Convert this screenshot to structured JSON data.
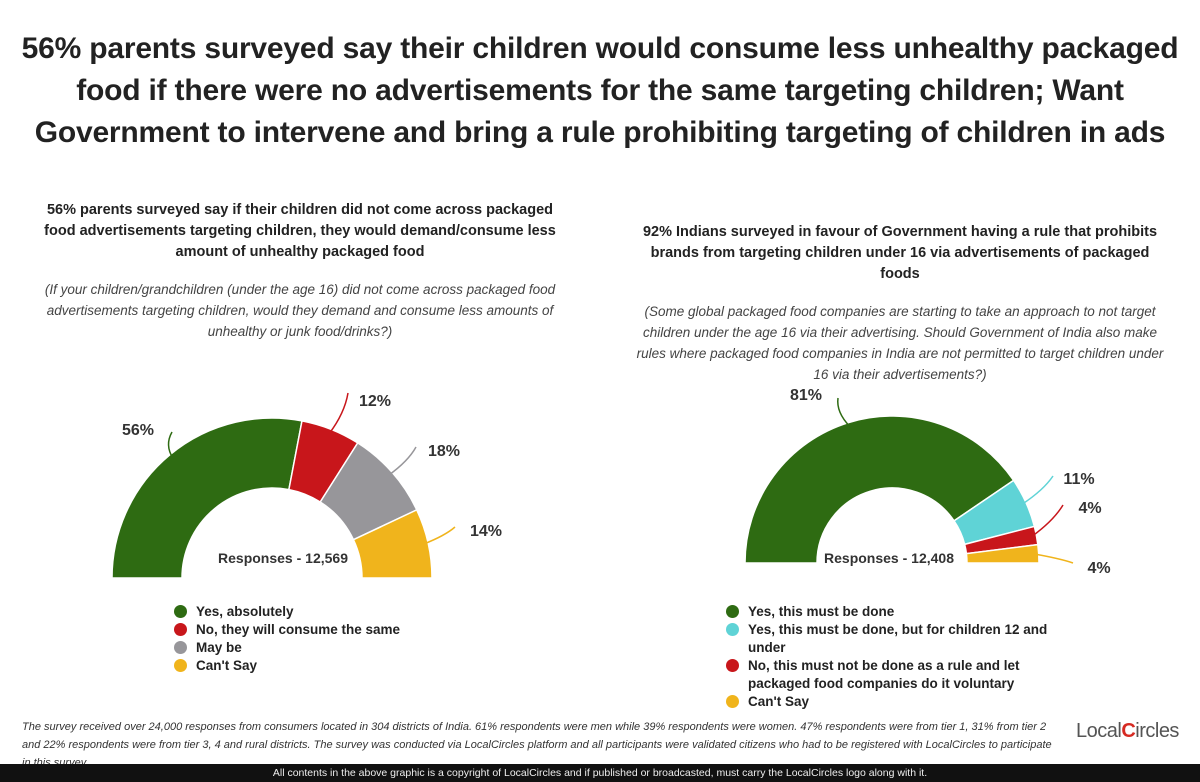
{
  "main_title": "56% parents surveyed say their children would consume less unhealthy packaged food if there were no advertisements for the same targeting children; Want Government to intervene and bring a rule prohibiting targeting of children in ads",
  "chart_data": [
    {
      "type": "pie",
      "shape": "half-donut",
      "title": "56% parents surveyed say if their children did not come across packaged food advertisements targeting children, they would demand/consume less amount of unhealthy packaged food",
      "subtitle": "(If your children/grandchildren (under the age 16) did not come across packaged food advertisements targeting children, would they demand and consume less amounts of unhealthy or junk food/drinks?)",
      "center_label": "Responses - 12,569",
      "categories": [
        "Yes, absolutely",
        "No, they will consume the same",
        "May be",
        "Can't Say"
      ],
      "values": [
        56,
        12,
        18,
        14
      ],
      "labels": [
        "56%",
        "12%",
        "18%",
        "14%"
      ],
      "colors": [
        "#2e6b12",
        "#c8161b",
        "#97969a",
        "#f0b41c"
      ],
      "legend_position": "bottom"
    },
    {
      "type": "pie",
      "shape": "half-donut",
      "title": "92% Indians surveyed in favour of Government having a rule that prohibits brands from targeting children under 16 via advertisements of packaged foods",
      "subtitle": "(Some global packaged food companies are starting to take an approach to not target children under the age 16 via their advertising. Should Government of India also make rules where packaged food companies in India are not permitted to target children under 16 via their advertisements?)",
      "center_label": "Responses - 12,408",
      "categories": [
        "Yes, this must be done",
        "Yes, this must be done, but for children 12 and under",
        "No, this must not be done as a rule and let packaged food companies do it voluntary",
        "Can't Say"
      ],
      "values": [
        81,
        11,
        4,
        4
      ],
      "labels": [
        "81%",
        "11%",
        "4%",
        "4%"
      ],
      "colors": [
        "#2e6b12",
        "#5fd3d6",
        "#c8161b",
        "#f0b41c"
      ],
      "legend_position": "bottom"
    }
  ],
  "footnote": "The survey received over 24,000 responses from consumers located in 304 districts of India. 61% respondents were men while 39% respondents were women. 47% respondents were from tier 1, 31% from tier 2 and 22% respondents were from tier 3, 4 and rural districts. The survey was conducted via LocalCircles platform and all participants were validated citizens who had to be registered with LocalCircles to participate in this survey.",
  "logo": {
    "part1": "Local",
    "part2": "C",
    "part3": "ircles"
  },
  "copyright": "All contents in the above graphic is a copyright of LocalCircles and if published or broadcasted, must carry the LocalCircles logo along with it."
}
